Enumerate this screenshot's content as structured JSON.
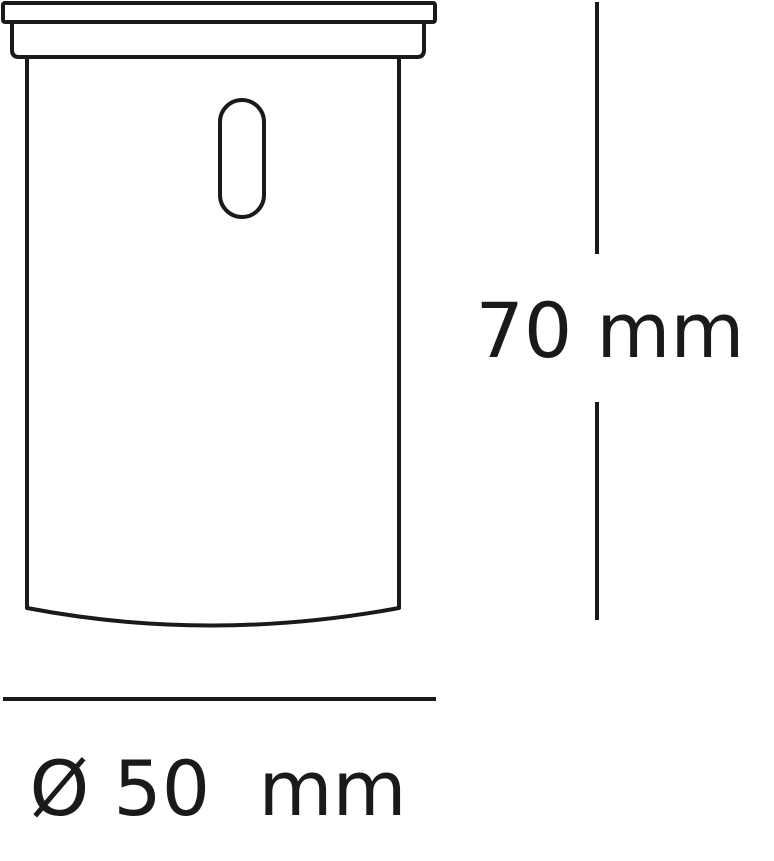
{
  "dimensions": {
    "height_label": "70 mm",
    "diameter_label": "Ø 50  mm"
  },
  "colors": {
    "line": "#1a1a1a",
    "background": "#ffffff"
  }
}
